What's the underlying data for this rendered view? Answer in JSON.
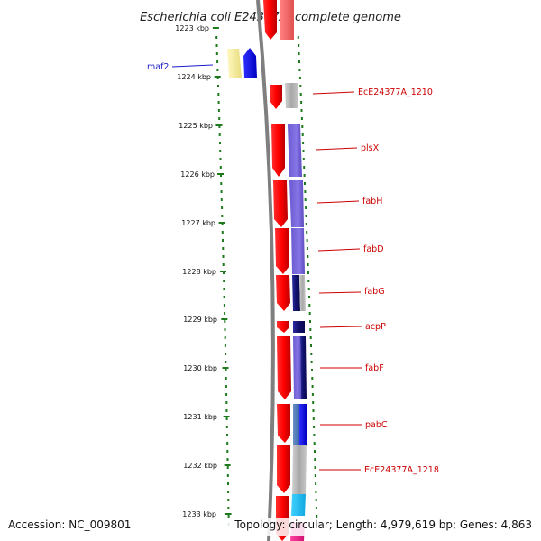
{
  "title": "Escherichia coli E24377A, complete genome",
  "footer": {
    "accession": "Accession: NC_009801",
    "topology": "Topology: circular; Length: 4,979,619 bp; Genes: 4,863"
  },
  "ruler": {
    "unit": "kbp",
    "labels": [
      "1223 kbp",
      "1224 kbp",
      "1225 kbp",
      "1226 kbp",
      "1227 kbp",
      "1228 kbp",
      "1229 kbp",
      "1230 kbp",
      "1231 kbp",
      "1232 kbp",
      "1233 kbp"
    ]
  },
  "genes": [
    {
      "name": "maf2",
      "color": "#1a1acc"
    },
    {
      "name": "EcE24377A_1210",
      "color": "#cc0000"
    },
    {
      "name": "plsX",
      "color": "#cc0000"
    },
    {
      "name": "fabH",
      "color": "#cc0000"
    },
    {
      "name": "fabD",
      "color": "#cc0000"
    },
    {
      "name": "fabG",
      "color": "#cc0000"
    },
    {
      "name": "acpP",
      "color": "#cc0000"
    },
    {
      "name": "fabF",
      "color": "#cc0000"
    },
    {
      "name": "pabC",
      "color": "#cc0000"
    },
    {
      "name": "EcE24377A_1218",
      "color": "#cc0000"
    }
  ],
  "colors": {
    "forward_strand": "#ff0000",
    "reverse_strand": "#0000ff",
    "backbone": "#7f7f7f",
    "ticks": "#1d7a1d",
    "blast_purple": "#7466d8",
    "blast_navy": "#1a1a80",
    "blast_gray": "#b0b0b0",
    "blast_cyan": "#1ec0f0",
    "blast_steel": "#4a78b8",
    "pseudo_yellow": "#f5eea0"
  }
}
